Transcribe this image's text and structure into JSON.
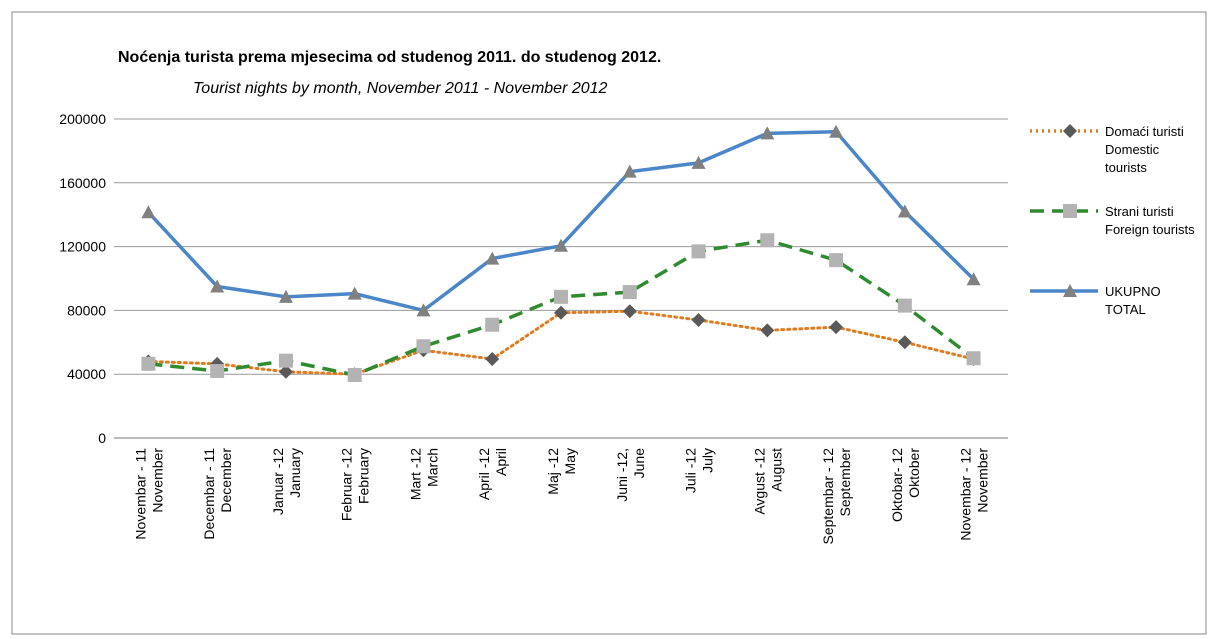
{
  "chart_data": {
    "type": "line",
    "title": "Noćenja turista prema mjesecima od studenog 2011.  do  studenog 2012.",
    "subtitle": "Tourist nights by month,  November 2011 -  November 2012",
    "categories": [
      "Novembar - 11\nNovember",
      "Decembar - 11\nDecember",
      "Januar -12\nJanuary",
      "Februar -12\nFebruary",
      "Mart -12\nMarch",
      "April -12\nApril",
      "Maj -12\nMay",
      "Juni -12,\nJune",
      "Juli -12\nJuly",
      "Avgust -12\nAugust",
      "Septembar - 12\nSeptember",
      "Oktobar- 12\nOktober",
      "Novembar - 12\nNovember"
    ],
    "series": [
      {
        "name": "Domaći turisti\nDomestic\ntourists",
        "color": "#e07b1f",
        "dash": "dotted",
        "marker": "diamond",
        "marker_color": "#595959",
        "values": [
          48000,
          46500,
          41500,
          40000,
          55000,
          49500,
          78500,
          79500,
          74000,
          67500,
          69500,
          60000,
          49500
        ]
      },
      {
        "name": "Strani turisti\nForeign tourists",
        "color": "#2e8b2e",
        "dash": "dashed",
        "marker": "square",
        "marker_color": "#b3b3b3",
        "values": [
          46500,
          42000,
          48500,
          39500,
          57500,
          71000,
          88500,
          91500,
          117000,
          124000,
          111500,
          83000,
          50000
        ]
      },
      {
        "name": "UKUPNO\nTOTAL",
        "color": "#4a86c8",
        "dash": "solid",
        "marker": "triangle",
        "marker_color": "#808080",
        "values": [
          141500,
          95000,
          88500,
          90500,
          80000,
          112500,
          120500,
          167000,
          172500,
          191000,
          192000,
          142000,
          99500
        ]
      }
    ],
    "ylim": [
      0,
      200000
    ],
    "yticks": [
      0,
      40000,
      80000,
      120000,
      160000,
      200000
    ],
    "grid": true
  }
}
